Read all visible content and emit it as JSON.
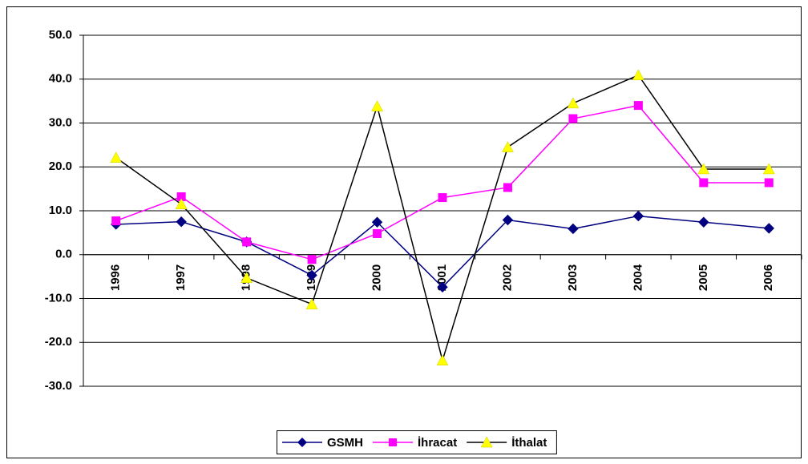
{
  "chart_data": {
    "type": "line",
    "categories": [
      "1996",
      "1997",
      "1998",
      "1999",
      "2000",
      "2001",
      "2002",
      "2003",
      "2004",
      "2005",
      "2006"
    ],
    "series": [
      {
        "name": "GSMH",
        "color": "#000080",
        "line_color": "#000080",
        "marker": "diamond",
        "values": [
          6.9,
          7.5,
          2.9,
          -4.7,
          7.4,
          -7.4,
          7.9,
          5.9,
          8.8,
          7.4,
          6.0
        ]
      },
      {
        "name": "İhracat",
        "color": "#ff00ff",
        "line_color": "#ff00ff",
        "marker": "square",
        "values": [
          7.7,
          13.2,
          2.9,
          -1.1,
          4.8,
          13.0,
          15.3,
          31.0,
          34.0,
          16.4,
          16.4
        ]
      },
      {
        "name": "İthalat",
        "color": "#ffff00",
        "line_color": "#000000",
        "marker": "triangle",
        "values": [
          22.1,
          11.5,
          -5.3,
          -11.3,
          33.8,
          -24.1,
          24.5,
          34.5,
          40.9,
          19.5,
          19.5
        ]
      }
    ],
    "ylim": [
      -30,
      50
    ],
    "yticks": [
      {
        "value": -30,
        "label": "-30.0"
      },
      {
        "value": -20,
        "label": "-20.0"
      },
      {
        "value": -10,
        "label": "-10.0"
      },
      {
        "value": 0,
        "label": "0.0"
      },
      {
        "value": 10,
        "label": "10.0"
      },
      {
        "value": 20,
        "label": "20.0"
      },
      {
        "value": 30,
        "label": "30.0"
      },
      {
        "value": 40,
        "label": "40.0"
      },
      {
        "value": 50,
        "label": "50.0"
      }
    ],
    "grid": true,
    "legend": "bottom"
  }
}
